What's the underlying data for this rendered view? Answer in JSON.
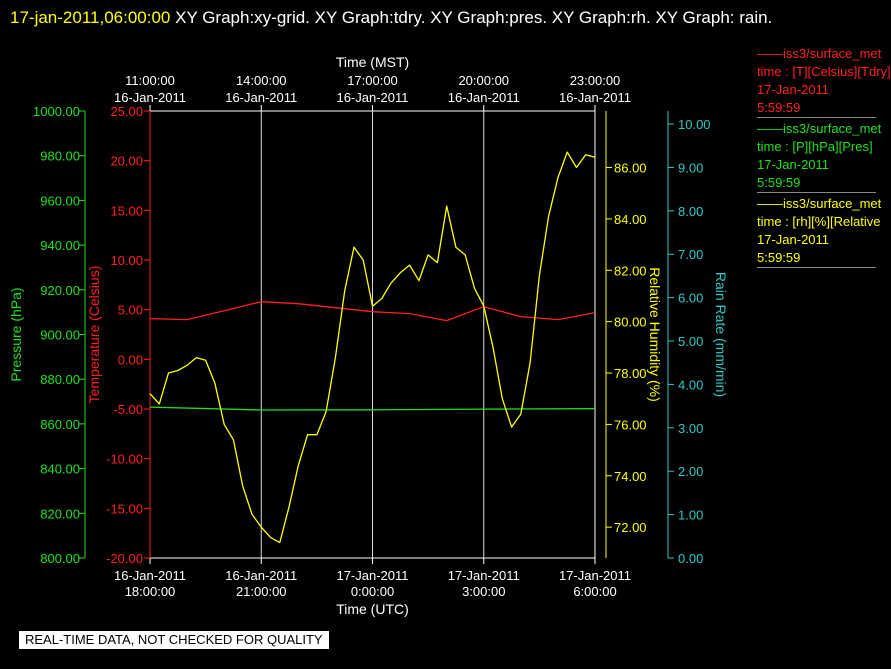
{
  "header": {
    "timestamp": "17-jan-2011,06:00:00",
    "graphs_text": "XY Graph:xy-grid.  XY Graph:tdry.  XY Graph:pres.  XY Graph:rh.  XY Graph: rain."
  },
  "footer": {
    "banner": "REAL-TIME DATA, NOT CHECKED FOR QUALITY"
  },
  "legend": [
    {
      "color": "#ff2020",
      "line1": "iss3/surface_met",
      "line2": "time : [T][Celsius][Tdry]",
      "line3": "17-Jan-2011",
      "line4": "5:59:59"
    },
    {
      "color": "#20e020",
      "line1": "iss3/surface_met",
      "line2": "time : [P][hPa][Pres]",
      "line3": "17-Jan-2011",
      "line4": "5:59:59"
    },
    {
      "color": "#ffff00",
      "line1": "iss3/surface_met",
      "line2": "time : [rh][%][Relative",
      "line3": "17-Jan-2011",
      "line4": "5:59:59"
    }
  ],
  "chart_data": {
    "type": "line",
    "x_axis_bottom": {
      "label": "Time (UTC)",
      "ticks": [
        {
          "date": "16-Jan-2011",
          "time": "18:00:00"
        },
        {
          "date": "16-Jan-2011",
          "time": "21:00:00"
        },
        {
          "date": "17-Jan-2011",
          "time": "0:00:00"
        },
        {
          "date": "17-Jan-2011",
          "time": "3:00:00"
        },
        {
          "date": "17-Jan-2011",
          "time": "6:00:00"
        }
      ]
    },
    "x_axis_top": {
      "label": "Time (MST)",
      "ticks": [
        {
          "time": "11:00:00",
          "date": "16-Jan-2011"
        },
        {
          "time": "14:00:00",
          "date": "16-Jan-2011"
        },
        {
          "time": "17:00:00",
          "date": "16-Jan-2011"
        },
        {
          "time": "20:00:00",
          "date": "16-Jan-2011"
        },
        {
          "time": "23:00:00",
          "date": "16-Jan-2011"
        }
      ]
    },
    "x_utc_range": [
      "2011-01-16 18:00",
      "2011-01-17 06:00"
    ],
    "x_units": "UTC time",
    "grid": "vertical lines at 3-hour ticks",
    "axes": {
      "pressure": {
        "label": "Pressure (hPa)",
        "color": "#20e020",
        "range": [
          800,
          1000
        ],
        "ticks": [
          "800.00",
          "820.00",
          "840.00",
          "860.00",
          "880.00",
          "900.00",
          "920.00",
          "940.00",
          "960.00",
          "980.00",
          "1000.00"
        ]
      },
      "temperature": {
        "label": "Temperature (Celsius)",
        "color": "#ff2020",
        "range": [
          -20,
          25
        ],
        "ticks": [
          "-20.00",
          "-15.00",
          "-10.00",
          "-5.00",
          "0.00",
          "5.00",
          "10.00",
          "15.00",
          "20.00",
          "25.00"
        ]
      },
      "rh": {
        "label": "Relative Humidity (%)",
        "color": "#ffff00",
        "range": [
          70.8,
          88.2
        ],
        "ticks": [
          "72.00",
          "74.00",
          "76.00",
          "78.00",
          "80.00",
          "82.00",
          "84.00",
          "86.00"
        ]
      },
      "rain": {
        "label": "Rain Rate (mm/min)",
        "color": "#30c8c8",
        "range": [
          0,
          10.3
        ],
        "ticks": [
          "0.00",
          "1.00",
          "2.00",
          "3.00",
          "4.00",
          "5.00",
          "6.00",
          "7.00",
          "8.00",
          "9.00",
          "10.00"
        ]
      }
    },
    "series": [
      {
        "name": "Tdry",
        "axis": "temperature",
        "color": "#ff2020",
        "x": [
          "2011-01-16 18:00",
          "2011-01-16 19:00",
          "2011-01-16 20:00",
          "2011-01-16 21:00",
          "2011-01-16 22:00",
          "2011-01-16 23:00",
          "2011-01-17 00:00",
          "2011-01-17 01:00",
          "2011-01-17 02:00",
          "2011-01-17 03:00",
          "2011-01-17 04:00",
          "2011-01-17 05:00",
          "2011-01-17 06:00"
        ],
        "y": [
          4.1,
          4.0,
          4.9,
          5.8,
          5.6,
          5.2,
          4.8,
          4.6,
          3.9,
          5.3,
          4.3,
          4.0,
          4.7
        ]
      },
      {
        "name": "Pres",
        "axis": "pressure",
        "color": "#20e020",
        "x": [
          "2011-01-16 18:00",
          "2011-01-16 21:00",
          "2011-01-17 00:00",
          "2011-01-17 03:00",
          "2011-01-17 06:00"
        ],
        "y": [
          867.5,
          866.2,
          866.3,
          866.6,
          866.8
        ]
      },
      {
        "name": "RH",
        "axis": "rh",
        "color": "#ffff00",
        "x": [
          "2011-01-16 18:00",
          "2011-01-16 18:15",
          "2011-01-16 18:30",
          "2011-01-16 18:45",
          "2011-01-16 19:00",
          "2011-01-16 19:15",
          "2011-01-16 19:30",
          "2011-01-16 19:45",
          "2011-01-16 20:00",
          "2011-01-16 20:15",
          "2011-01-16 20:30",
          "2011-01-16 20:45",
          "2011-01-16 21:00",
          "2011-01-16 21:15",
          "2011-01-16 21:30",
          "2011-01-16 21:45",
          "2011-01-16 22:00",
          "2011-01-16 22:15",
          "2011-01-16 22:30",
          "2011-01-16 22:45",
          "2011-01-16 23:00",
          "2011-01-16 23:15",
          "2011-01-16 23:30",
          "2011-01-16 23:45",
          "2011-01-17 00:00",
          "2011-01-17 00:15",
          "2011-01-17 00:30",
          "2011-01-17 00:45",
          "2011-01-17 01:00",
          "2011-01-17 01:15",
          "2011-01-17 01:30",
          "2011-01-17 01:45",
          "2011-01-17 02:00",
          "2011-01-17 02:15",
          "2011-01-17 02:30",
          "2011-01-17 02:45",
          "2011-01-17 03:00",
          "2011-01-17 03:15",
          "2011-01-17 03:30",
          "2011-01-17 03:45",
          "2011-01-17 04:00",
          "2011-01-17 04:15",
          "2011-01-17 04:30",
          "2011-01-17 04:45",
          "2011-01-17 05:00",
          "2011-01-17 05:15",
          "2011-01-17 05:30",
          "2011-01-17 05:45",
          "2011-01-17 06:00"
        ],
        "y": [
          77.2,
          76.8,
          78.0,
          78.1,
          78.3,
          78.6,
          78.5,
          77.6,
          76.0,
          75.4,
          73.6,
          72.5,
          72.0,
          71.6,
          71.4,
          72.8,
          74.4,
          75.6,
          75.6,
          76.5,
          78.6,
          81.2,
          82.9,
          82.4,
          80.6,
          80.9,
          81.5,
          81.9,
          82.2,
          81.6,
          82.6,
          82.3,
          84.5,
          82.9,
          82.6,
          81.3,
          80.6,
          79.0,
          77.0,
          75.9,
          76.4,
          78.4,
          81.8,
          84.1,
          85.6,
          86.6,
          86.0,
          86.5,
          86.4
        ]
      }
    ]
  }
}
